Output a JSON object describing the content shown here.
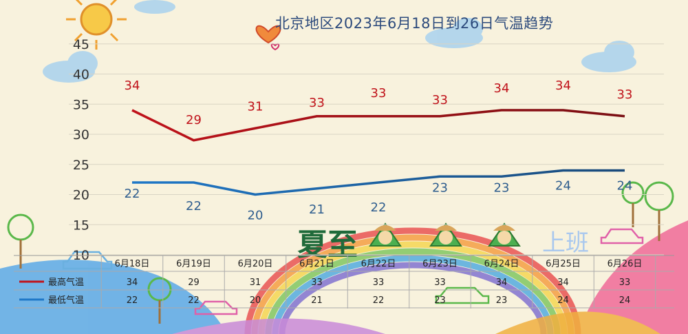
{
  "title": "北京地区2023年6月18日到26日气温趋势",
  "decor": {
    "calligraphy": "夏至",
    "work_text": "上班",
    "sun_icon": "sun-icon",
    "heart_icon": "heart-icon",
    "cloud_icon": "cloud-icon",
    "rainbow_icon": "rainbow-icon",
    "car_icon": "car-icon"
  },
  "colors": {
    "high": "#c0121a",
    "high_dark": "#7a0e12",
    "low": "#1f78c8",
    "low_dark": "#1a4a7a",
    "background": "#f8f2dd"
  },
  "chart_data": {
    "type": "line",
    "title": "北京地区2023年6月18日到26日气温趋势",
    "categories": [
      "6月18日",
      "6月19日",
      "6月20日",
      "6月21日",
      "6月22日",
      "6月23日",
      "6月24日",
      "6月25日",
      "6月26日"
    ],
    "series": [
      {
        "name": "最高气温",
        "values": [
          34,
          29,
          31,
          33,
          33,
          33,
          34,
          34,
          33
        ]
      },
      {
        "name": "最低气温",
        "values": [
          22,
          22,
          20,
          21,
          22,
          23,
          23,
          24,
          24
        ]
      }
    ],
    "ylim": [
      10,
      45
    ],
    "yticks": [
      10,
      15,
      20,
      25,
      30,
      35,
      40,
      45
    ],
    "grid": true,
    "legend": "bottom-left data table"
  }
}
